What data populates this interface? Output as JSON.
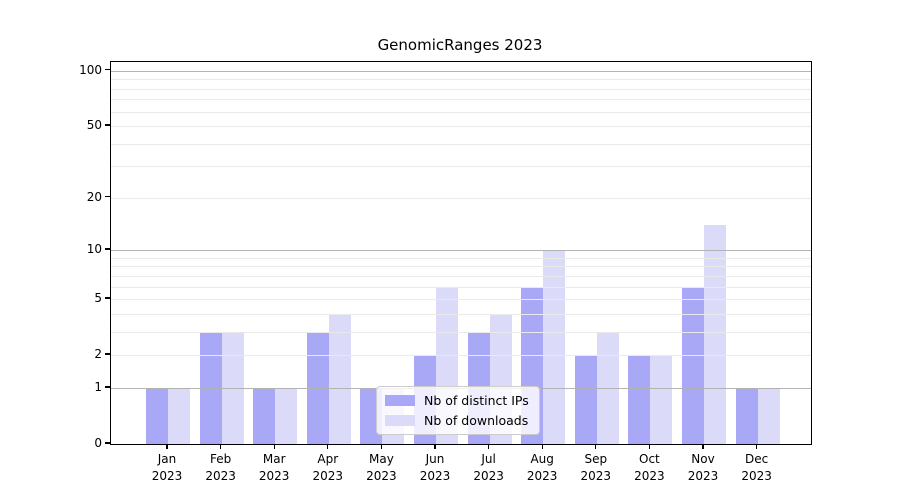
{
  "title": "GenomicRanges 2023",
  "chart_data": {
    "type": "bar",
    "title": "GenomicRanges 2023",
    "categories": [
      {
        "month": "Jan",
        "year": "2023"
      },
      {
        "month": "Feb",
        "year": "2023"
      },
      {
        "month": "Mar",
        "year": "2023"
      },
      {
        "month": "Apr",
        "year": "2023"
      },
      {
        "month": "May",
        "year": "2023"
      },
      {
        "month": "Jun",
        "year": "2023"
      },
      {
        "month": "Jul",
        "year": "2023"
      },
      {
        "month": "Aug",
        "year": "2023"
      },
      {
        "month": "Sep",
        "year": "2023"
      },
      {
        "month": "Oct",
        "year": "2023"
      },
      {
        "month": "Nov",
        "year": "2023"
      },
      {
        "month": "Dec",
        "year": "2023"
      }
    ],
    "series": [
      {
        "name": "Nb of distinct IPs",
        "color": "#a8a8f7",
        "values": [
          1,
          3,
          1,
          3,
          1,
          2,
          3,
          6,
          2,
          2,
          6,
          1
        ]
      },
      {
        "name": "Nb of downloads",
        "color": "#dbdbf9",
        "values": [
          1,
          3,
          1,
          4,
          1,
          6,
          4,
          10,
          3,
          2,
          14,
          1
        ]
      }
    ],
    "y_axis": {
      "scale": "log1p",
      "max_value": 111.6,
      "tick_values": [
        0,
        1,
        2,
        5,
        10,
        20,
        50,
        100
      ],
      "tick_labels": [
        "0",
        "1",
        "2",
        "5",
        "10",
        "20",
        "50",
        "100"
      ],
      "decade_gridline_values": [
        1,
        10,
        100
      ],
      "minor_gridline_values": [
        2,
        3,
        4,
        5,
        6,
        7,
        8,
        9,
        20,
        30,
        40,
        50,
        60,
        70,
        80,
        90
      ]
    },
    "grid": true,
    "legend_position": "inside-bottom-center"
  },
  "colors": {
    "distinct_ips_bar": "#a8a8f7",
    "downloads_bar": "#dbdbf9",
    "decade_gridline": "#b3b3b3",
    "minor_gridline": "#eaeaea",
    "axis": "#000000",
    "legend_border": "#cccccc",
    "legend_background": "rgba(255,255,255,0.8)"
  }
}
